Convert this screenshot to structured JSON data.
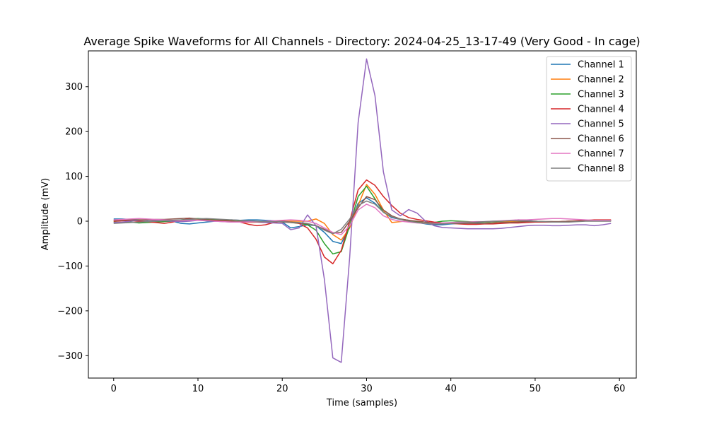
{
  "chart_data": {
    "type": "line",
    "title": "Average Spike Waveforms for All Channels - Directory: 2024-04-25_13-17-49 (Very Good - In cage)",
    "xlabel": "Time (samples)",
    "ylabel": "Amplitude (mV)",
    "xlim": [
      -3,
      62
    ],
    "ylim": [
      -350,
      380
    ],
    "xticks": [
      0,
      10,
      20,
      30,
      40,
      50,
      60
    ],
    "yticks": [
      -300,
      -200,
      -100,
      0,
      100,
      200,
      300
    ],
    "ytick_labels": [
      "−300",
      "−200",
      "−100",
      "0",
      "100",
      "200",
      "300"
    ],
    "grid": false,
    "legend_position": "top-right",
    "x": [
      0,
      1,
      2,
      3,
      4,
      5,
      6,
      7,
      8,
      9,
      10,
      11,
      12,
      13,
      14,
      15,
      16,
      17,
      18,
      19,
      20,
      21,
      22,
      23,
      24,
      25,
      26,
      27,
      28,
      29,
      30,
      31,
      32,
      33,
      34,
      35,
      36,
      37,
      38,
      39,
      40,
      41,
      42,
      43,
      44,
      45,
      46,
      47,
      48,
      49,
      50,
      51,
      52,
      53,
      54,
      55,
      56,
      57,
      58,
      59
    ],
    "series": [
      {
        "name": "Channel 1",
        "color": "#1f77b4",
        "values": [
          5,
          5,
          4,
          3,
          2,
          3,
          2,
          0,
          -5,
          -6,
          -4,
          -2,
          0,
          2,
          3,
          2,
          3,
          3,
          2,
          1,
          -2,
          -15,
          -12,
          -8,
          -10,
          -25,
          -45,
          -50,
          -10,
          40,
          52,
          40,
          20,
          8,
          4,
          2,
          -3,
          -6,
          -8,
          -8,
          -6,
          -5,
          -4,
          -3,
          -2,
          -1,
          0,
          1,
          3,
          2,
          0,
          -1,
          -1,
          -2,
          -1,
          0,
          1,
          2,
          2,
          2
        ]
      },
      {
        "name": "Channel 2",
        "color": "#ff7f0e",
        "values": [
          0,
          1,
          2,
          3,
          3,
          2,
          2,
          1,
          0,
          2,
          3,
          2,
          1,
          0,
          -1,
          -2,
          -3,
          -2,
          -1,
          0,
          0,
          0,
          0,
          0,
          5,
          -5,
          -30,
          -42,
          -15,
          35,
          82,
          60,
          25,
          -3,
          -1,
          1,
          -2,
          -5,
          -6,
          -5,
          -4,
          -3,
          -3,
          -2,
          -2,
          -1,
          -1,
          -1,
          0,
          0,
          0,
          -1,
          -1,
          -1,
          0,
          0,
          1,
          1,
          1,
          1
        ]
      },
      {
        "name": "Channel 3",
        "color": "#2ca02c",
        "values": [
          -2,
          -3,
          -2,
          -4,
          -3,
          -2,
          -1,
          0,
          3,
          5,
          6,
          5,
          4,
          3,
          2,
          1,
          -1,
          -2,
          -2,
          -1,
          0,
          -3,
          -5,
          -8,
          -20,
          -50,
          -73,
          -68,
          -10,
          55,
          78,
          50,
          20,
          10,
          5,
          2,
          -2,
          -5,
          -3,
          0,
          1,
          0,
          -1,
          -2,
          -2,
          -1,
          0,
          1,
          1,
          0,
          -1,
          -1,
          -2,
          -2,
          -1,
          0,
          1,
          2,
          2,
          1
        ]
      },
      {
        "name": "Channel 4",
        "color": "#d62728",
        "values": [
          0,
          1,
          1,
          0,
          -1,
          -3,
          -5,
          -2,
          2,
          6,
          5,
          3,
          2,
          1,
          0,
          -2,
          -7,
          -10,
          -8,
          -3,
          0,
          -2,
          -5,
          -15,
          -40,
          -80,
          -95,
          -65,
          0,
          70,
          92,
          80,
          55,
          35,
          18,
          8,
          4,
          1,
          -2,
          -4,
          -5,
          -6,
          -7,
          -7,
          -6,
          -6,
          -5,
          -4,
          -4,
          -3,
          -2,
          -2,
          -2,
          -1,
          0,
          1,
          2,
          3,
          3,
          3
        ]
      },
      {
        "name": "Channel 5",
        "color": "#9467bd",
        "values": [
          -3,
          -2,
          0,
          2,
          3,
          2,
          1,
          0,
          -1,
          0,
          2,
          1,
          0,
          -1,
          -2,
          -1,
          0,
          -2,
          -3,
          -4,
          -5,
          -19,
          -15,
          14,
          -10,
          -130,
          -305,
          -315,
          -80,
          220,
          362,
          280,
          110,
          25,
          12,
          26,
          18,
          0,
          -10,
          -14,
          -15,
          -16,
          -17,
          -17,
          -17,
          -17,
          -16,
          -14,
          -12,
          -10,
          -9,
          -9,
          -10,
          -10,
          -9,
          -8,
          -8,
          -10,
          -8,
          -5
        ]
      },
      {
        "name": "Channel 6",
        "color": "#8c564b",
        "values": [
          2,
          2,
          3,
          3,
          3,
          4,
          4,
          5,
          6,
          7,
          5,
          3,
          1,
          0,
          -1,
          -1,
          -2,
          -2,
          -1,
          -1,
          -2,
          -3,
          -4,
          -6,
          -10,
          -18,
          -27,
          -25,
          0,
          30,
          55,
          48,
          25,
          12,
          5,
          2,
          0,
          -2,
          -4,
          -5,
          -5,
          -5,
          -5,
          -5,
          -5,
          -4,
          -3,
          -3,
          -2,
          -1,
          -1,
          -1,
          -1,
          -1,
          0,
          0,
          1,
          1,
          1,
          1
        ]
      },
      {
        "name": "Channel 7",
        "color": "#e377c2",
        "values": [
          3,
          4,
          5,
          6,
          5,
          4,
          3,
          2,
          1,
          2,
          2,
          1,
          0,
          -1,
          -2,
          -2,
          -2,
          -1,
          0,
          1,
          2,
          3,
          2,
          0,
          -5,
          -15,
          -25,
          -30,
          -10,
          25,
          38,
          30,
          12,
          4,
          0,
          -2,
          -4,
          -5,
          -5,
          -4,
          -3,
          -2,
          -2,
          -1,
          -1,
          0,
          1,
          2,
          3,
          3,
          4,
          5,
          6,
          6,
          5,
          4,
          3,
          2,
          2,
          2
        ]
      },
      {
        "name": "Channel 8",
        "color": "#7f7f7f",
        "values": [
          -5,
          -4,
          -3,
          -2,
          -1,
          0,
          1,
          2,
          3,
          4,
          5,
          6,
          5,
          4,
          3,
          2,
          1,
          0,
          -1,
          -1,
          -1,
          -2,
          -3,
          -5,
          -10,
          -20,
          -28,
          -18,
          5,
          35,
          45,
          38,
          20,
          10,
          4,
          0,
          -3,
          -5,
          -6,
          -6,
          -5,
          -4,
          -3,
          -2,
          -1,
          0,
          0,
          1,
          1,
          1,
          0,
          -1,
          -2,
          -2,
          -2,
          -1,
          0,
          0,
          0,
          0
        ]
      }
    ]
  }
}
